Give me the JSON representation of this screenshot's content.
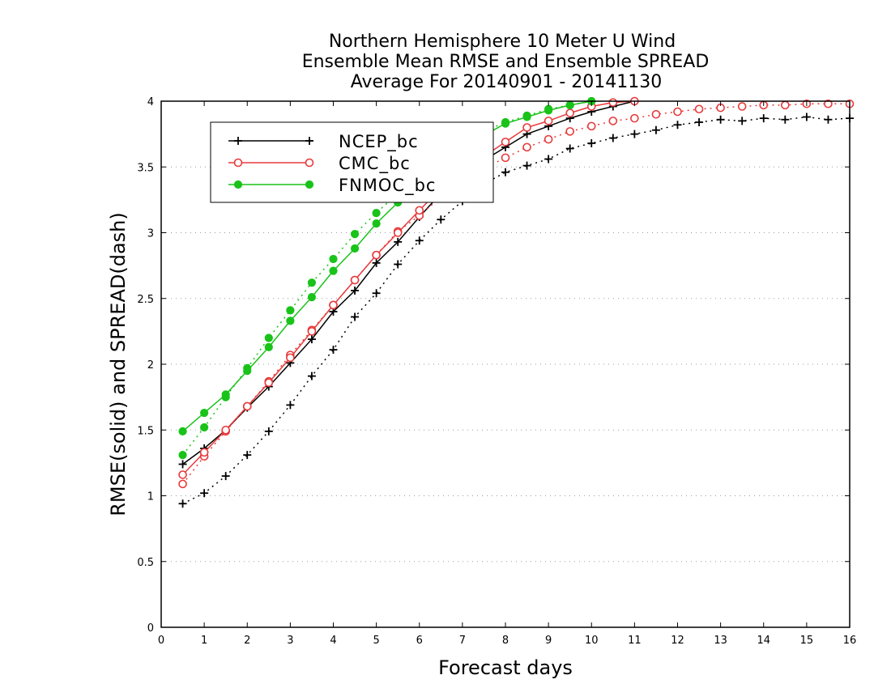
{
  "chart_data": {
    "type": "line",
    "title_lines": [
      "Northern Hemisphere 10 Meter U Wind",
      "Ensemble Mean RMSE and Ensemble SPREAD",
      "Average For 20140901 - 20141130"
    ],
    "xlabel": "Forecast days",
    "ylabel": "RMSE(solid) and SPREAD(dash)",
    "xlim": [
      0,
      16
    ],
    "ylim": [
      0,
      4
    ],
    "x_ticks": [
      "0",
      "1",
      "2",
      "3",
      "4",
      "5",
      "6",
      "7",
      "8",
      "9",
      "10",
      "11",
      "12",
      "13",
      "14",
      "15",
      "16"
    ],
    "y_ticks": [
      "0",
      "0.5",
      "1",
      "1.5",
      "2",
      "2.5",
      "3",
      "3.5",
      "4"
    ],
    "grid": "horizontal dotted",
    "legend_placement": "top-left",
    "series": [
      {
        "name": "NCEP_bc",
        "color": "#000000",
        "marker": "plus",
        "rmse": {
          "x": [
            0.5,
            1,
            1.5,
            2,
            2.5,
            3,
            3.5,
            4,
            4.5,
            5,
            5.5,
            6,
            6.5,
            7,
            7.5,
            8,
            8.5,
            9,
            9.5,
            10,
            10.5,
            11
          ],
          "y": [
            1.24,
            1.36,
            1.5,
            1.67,
            1.83,
            2.01,
            2.19,
            2.4,
            2.56,
            2.77,
            2.93,
            3.12,
            3.3,
            3.45,
            3.55,
            3.65,
            3.75,
            3.81,
            3.87,
            3.92,
            3.96,
            4.0
          ]
        },
        "spread": {
          "x": [
            0.5,
            1,
            1.5,
            2,
            2.5,
            3,
            3.5,
            4,
            4.5,
            5,
            5.5,
            6,
            6.5,
            7,
            7.5,
            8,
            8.5,
            9,
            9.5,
            10,
            10.5,
            11,
            11.5,
            12,
            12.5,
            13,
            13.5,
            14,
            14.5,
            15,
            15.5,
            16
          ],
          "y": [
            0.94,
            1.02,
            1.15,
            1.31,
            1.49,
            1.69,
            1.91,
            2.11,
            2.36,
            2.54,
            2.76,
            2.94,
            3.1,
            3.24,
            3.37,
            3.46,
            3.51,
            3.56,
            3.64,
            3.68,
            3.72,
            3.75,
            3.78,
            3.82,
            3.84,
            3.86,
            3.85,
            3.87,
            3.86,
            3.88,
            3.86,
            3.87
          ]
        }
      },
      {
        "name": "CMC_bc",
        "color": "#e8393b",
        "marker": "open-circle",
        "rmse": {
          "x": [
            0.5,
            1,
            1.5,
            2,
            2.5,
            3,
            3.5,
            4,
            4.5,
            5,
            5.5,
            6,
            6.5,
            7,
            7.5,
            8,
            8.5,
            9,
            9.5,
            10,
            10.5,
            11
          ],
          "y": [
            1.16,
            1.33,
            1.5,
            1.68,
            1.86,
            2.05,
            2.25,
            2.45,
            2.64,
            2.83,
            3.0,
            3.17,
            3.34,
            3.47,
            3.58,
            3.69,
            3.8,
            3.85,
            3.91,
            3.96,
            3.99,
            4.0
          ]
        },
        "spread": {
          "x": [
            0.5,
            1,
            1.5,
            2,
            2.5,
            3,
            3.5,
            4,
            4.5,
            5,
            5.5,
            6,
            6.5,
            7,
            7.5,
            8,
            8.5,
            9,
            9.5,
            10,
            10.5,
            11,
            11.5,
            12,
            12.5,
            13,
            13.5,
            14,
            14.5,
            15,
            15.5,
            16
          ],
          "y": [
            1.09,
            1.3,
            1.49,
            1.68,
            1.87,
            2.07,
            2.26,
            2.45,
            2.64,
            2.83,
            3.01,
            3.13,
            3.27,
            3.38,
            3.49,
            3.57,
            3.65,
            3.71,
            3.77,
            3.81,
            3.85,
            3.87,
            3.9,
            3.92,
            3.94,
            3.95,
            3.96,
            3.97,
            3.97,
            3.98,
            3.98,
            3.98
          ]
        }
      },
      {
        "name": "FNMOC_bc",
        "color": "#19c319",
        "marker": "filled-circle",
        "rmse": {
          "x": [
            0.5,
            1,
            1.5,
            2,
            2.5,
            3,
            3.5,
            4,
            4.5,
            5,
            5.5,
            6,
            6.5,
            7,
            7.5,
            8,
            8.5,
            9,
            9.5,
            10
          ],
          "y": [
            1.49,
            1.63,
            1.77,
            1.95,
            2.13,
            2.33,
            2.51,
            2.71,
            2.88,
            3.07,
            3.23,
            3.39,
            3.53,
            3.64,
            3.74,
            3.83,
            3.88,
            3.93,
            3.97,
            4.0
          ]
        },
        "spread": {
          "x": [
            0.5,
            1,
            1.5,
            2,
            2.5,
            3,
            3.5,
            4,
            4.5,
            5,
            5.5,
            6,
            6.5,
            7,
            7.5,
            8,
            8.5,
            9,
            9.5,
            10
          ],
          "y": [
            1.31,
            1.52,
            1.75,
            1.97,
            2.2,
            2.41,
            2.62,
            2.8,
            2.99,
            3.15,
            3.3,
            3.44,
            3.57,
            3.68,
            3.77,
            3.84,
            3.89,
            3.94,
            3.97,
            4.0
          ]
        }
      }
    ]
  }
}
